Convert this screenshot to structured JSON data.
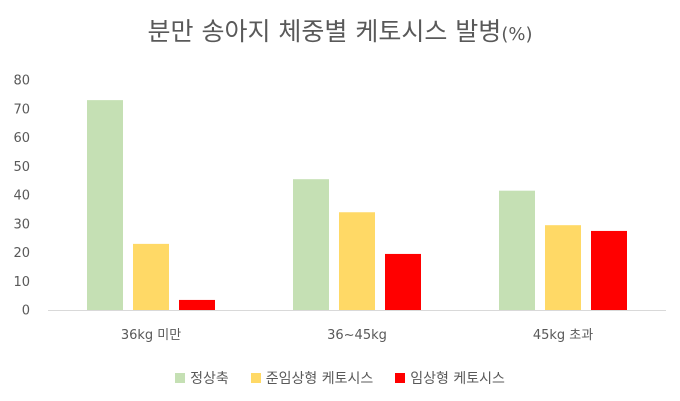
{
  "chart_data": {
    "type": "bar",
    "title": "분만 송아지 체중별 케토시스 발병",
    "title_unit": "(%)",
    "categories": [
      "36kg 미만",
      "36~45kg",
      "45kg 초과"
    ],
    "series": [
      {
        "name": "정상축",
        "color": "#C5E0B4",
        "values": [
          73,
          45.5,
          41.5
        ]
      },
      {
        "name": "준임상형 케토시스",
        "color": "#FFD966",
        "values": [
          23,
          34,
          29.5
        ]
      },
      {
        "name": "임상형 케토시스",
        "color": "#FF0000",
        "values": [
          3.5,
          19.5,
          27.5
        ]
      }
    ],
    "y_ticks": [
      "0",
      "10",
      "20",
      "30",
      "40",
      "50",
      "60",
      "70",
      "80"
    ],
    "ylim": [
      0,
      80
    ],
    "grid": false,
    "legend_position": "bottom"
  }
}
